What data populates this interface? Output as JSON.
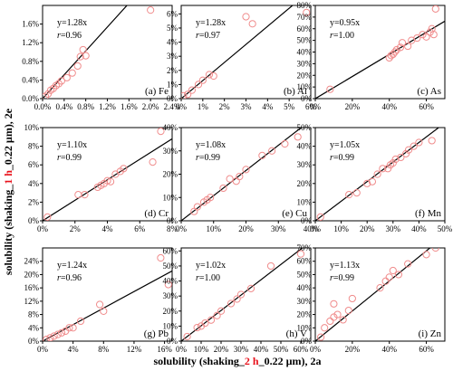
{
  "figure": {
    "ylabel_parts": [
      {
        "text": "solubility (shaking_",
        "color": "#000000"
      },
      {
        "text": "1 h",
        "color": "#e8101a"
      },
      {
        "text": "_0.22 µm), 2e",
        "color": "#000000"
      }
    ],
    "xlabel_parts": [
      {
        "text": "solubility (shaking_",
        "color": "#000000"
      },
      {
        "text": "2 h",
        "color": "#e8101a"
      },
      {
        "text": "_0.22 µm), 2a",
        "color": "#000000"
      }
    ],
    "marker_color": "#f08c8c",
    "line_color": "#000000"
  },
  "chart_data": [
    {
      "type": "scatter",
      "label": "(a) Fe",
      "eq": "y=1.28x",
      "r": "0.96",
      "xlim": [
        0,
        2.4
      ],
      "ylim": [
        0,
        2.0
      ],
      "xticks": [
        "0.0%",
        "0.4%",
        "0.8%",
        "1.2%",
        "1.6%",
        "2.0%",
        "2.4%"
      ],
      "yticks": [
        "0.0%",
        "0.4%",
        "0.8%",
        "1.2%",
        "1.6%"
      ],
      "xtick_values": [
        0,
        0.4,
        0.8,
        1.2,
        1.6,
        2.0,
        2.4
      ],
      "ytick_values": [
        0,
        0.4,
        0.8,
        1.2,
        1.6
      ],
      "slope": 1.28,
      "points": [
        [
          0.05,
          0.05
        ],
        [
          0.1,
          0.1
        ],
        [
          0.15,
          0.18
        ],
        [
          0.2,
          0.22
        ],
        [
          0.25,
          0.28
        ],
        [
          0.3,
          0.32
        ],
        [
          0.35,
          0.38
        ],
        [
          0.45,
          0.45
        ],
        [
          0.55,
          0.55
        ],
        [
          0.65,
          0.7
        ],
        [
          0.7,
          0.9
        ],
        [
          0.75,
          1.05
        ],
        [
          0.8,
          0.92
        ],
        [
          2.0,
          1.9
        ]
      ]
    },
    {
      "type": "scatter",
      "label": "(b) Al",
      "eq": "y=1.28x",
      "r": "0.97",
      "xlim": [
        0,
        6
      ],
      "ylim": [
        0,
        6.6
      ],
      "xticks": [
        "0%",
        "1%",
        "2%",
        "3%",
        "4%",
        "5%",
        "6%"
      ],
      "yticks": [
        "0%",
        "1%",
        "2%",
        "3%",
        "4%",
        "5%",
        "6%"
      ],
      "xtick_values": [
        0,
        1,
        2,
        3,
        4,
        5,
        6
      ],
      "ytick_values": [
        0,
        1,
        2,
        3,
        4,
        5,
        6
      ],
      "slope": 1.28,
      "points": [
        [
          0.1,
          0.2
        ],
        [
          0.3,
          0.3
        ],
        [
          0.5,
          0.6
        ],
        [
          0.8,
          1.0
        ],
        [
          1.0,
          1.3
        ],
        [
          1.3,
          1.7
        ],
        [
          1.5,
          1.6
        ],
        [
          3.0,
          5.8
        ],
        [
          3.3,
          5.3
        ],
        [
          5.8,
          6.1
        ]
      ]
    },
    {
      "type": "scatter",
      "label": "(c) As",
      "eq": "y=0.95x",
      "r": "1.00",
      "xlim": [
        0,
        70
      ],
      "ylim": [
        0,
        80
      ],
      "xticks": [
        "0%",
        "20%",
        "40%",
        "60%"
      ],
      "yticks": [
        "0%",
        "10%",
        "20%",
        "30%",
        "40%",
        "50%",
        "60%",
        "70%",
        "80%"
      ],
      "xtick_values": [
        0,
        20,
        40,
        60
      ],
      "ytick_values": [
        0,
        10,
        20,
        30,
        40,
        50,
        60,
        70,
        80
      ],
      "slope": 0.95,
      "points": [
        [
          8,
          8
        ],
        [
          40,
          35
        ],
        [
          41,
          37
        ],
        [
          42,
          38
        ],
        [
          43,
          40
        ],
        [
          44,
          42
        ],
        [
          46,
          44
        ],
        [
          47,
          48
        ],
        [
          50,
          45
        ],
        [
          52,
          50
        ],
        [
          55,
          52
        ],
        [
          58,
          55
        ],
        [
          60,
          53
        ],
        [
          62,
          57
        ],
        [
          63,
          60
        ],
        [
          64,
          55
        ],
        [
          65,
          77
        ]
      ]
    },
    {
      "type": "scatter",
      "label": "(d) Cr",
      "eq": "y=1.10x",
      "r": "0.99",
      "xlim": [
        0,
        8
      ],
      "ylim": [
        0,
        10
      ],
      "xticks": [
        "0%",
        "2%",
        "4%",
        "6%",
        "8%"
      ],
      "yticks": [
        "0%",
        "2%",
        "4%",
        "6%",
        "8%",
        "10%"
      ],
      "xtick_values": [
        0,
        2,
        4,
        6,
        8
      ],
      "ytick_values": [
        0,
        2,
        4,
        6,
        8,
        10
      ],
      "slope": 1.1,
      "points": [
        [
          0.3,
          0.4
        ],
        [
          2.2,
          2.8
        ],
        [
          2.6,
          2.8
        ],
        [
          3.4,
          3.6
        ],
        [
          3.6,
          3.8
        ],
        [
          3.8,
          4.0
        ],
        [
          4.0,
          4.3
        ],
        [
          4.2,
          4.2
        ],
        [
          4.5,
          5.0
        ],
        [
          4.8,
          5.3
        ],
        [
          5.0,
          5.6
        ],
        [
          6.8,
          6.3
        ],
        [
          7.3,
          9.6
        ]
      ]
    },
    {
      "type": "scatter",
      "label": "(e) Cu",
      "eq": "y=1.08x",
      "r": "0.99",
      "xlim": [
        0,
        40
      ],
      "ylim": [
        0,
        40
      ],
      "xticks": [
        "0%",
        "10%",
        "20%",
        "30%",
        "40%"
      ],
      "yticks": [
        "0%",
        "10%",
        "20%",
        "30%",
        "40%"
      ],
      "xtick_values": [
        0,
        10,
        20,
        30,
        40
      ],
      "ytick_values": [
        0,
        10,
        20,
        30,
        40
      ],
      "slope": 1.08,
      "points": [
        [
          4,
          4
        ],
        [
          5,
          6
        ],
        [
          7,
          8
        ],
        [
          8,
          9
        ],
        [
          9,
          10
        ],
        [
          13,
          14
        ],
        [
          15,
          18
        ],
        [
          17,
          17
        ],
        [
          18,
          19
        ],
        [
          20,
          22
        ],
        [
          25,
          28
        ],
        [
          28,
          30
        ],
        [
          32,
          33
        ],
        [
          36,
          36
        ]
      ]
    },
    {
      "type": "scatter",
      "label": "(f) Mn",
      "eq": "y=1.05x",
      "r": "0.99",
      "xlim": [
        0,
        50
      ],
      "ylim": [
        0,
        50
      ],
      "xticks": [
        "0%",
        "10%",
        "20%",
        "30%",
        "40%",
        "50%"
      ],
      "yticks": [
        "0%",
        "10%",
        "20%",
        "30%",
        "40%",
        "50%"
      ],
      "xtick_values": [
        0,
        10,
        20,
        30,
        40,
        50
      ],
      "ytick_values": [
        0,
        10,
        20,
        30,
        40,
        50
      ],
      "slope": 1.05,
      "points": [
        [
          2,
          2
        ],
        [
          13,
          14
        ],
        [
          16,
          15
        ],
        [
          20,
          20
        ],
        [
          22,
          21
        ],
        [
          24,
          25
        ],
        [
          26,
          28
        ],
        [
          28,
          28
        ],
        [
          29,
          30
        ],
        [
          30,
          31
        ],
        [
          31,
          33
        ],
        [
          33,
          34
        ],
        [
          35,
          36
        ],
        [
          36,
          38
        ],
        [
          38,
          40
        ],
        [
          40,
          42
        ],
        [
          45,
          43
        ],
        [
          37,
          52
        ]
      ]
    },
    {
      "type": "scatter",
      "label": "(g) Pb",
      "eq": "y=1.24x",
      "r": "0.96",
      "xlim": [
        0,
        17
      ],
      "ylim": [
        0,
        28
      ],
      "xticks": [
        "0%",
        "4%",
        "8%",
        "12%",
        "16%"
      ],
      "yticks": [
        "0%",
        "4%",
        "8%",
        "12%",
        "16%",
        "20%",
        "24%"
      ],
      "xtick_values": [
        0,
        4,
        8,
        12,
        16
      ],
      "ytick_values": [
        0,
        4,
        8,
        12,
        16,
        20,
        24
      ],
      "slope": 1.24,
      "points": [
        [
          0.5,
          0.5
        ],
        [
          1,
          1
        ],
        [
          1.5,
          1.5
        ],
        [
          2,
          2
        ],
        [
          2.5,
          2.5
        ],
        [
          3,
          3
        ],
        [
          3.5,
          4
        ],
        [
          4,
          4
        ],
        [
          5,
          6
        ],
        [
          7.5,
          11
        ],
        [
          8,
          9
        ],
        [
          15.5,
          25
        ],
        [
          16.5,
          17
        ]
      ]
    },
    {
      "type": "scatter",
      "label": "(h) V",
      "eq": "y=1.02x",
      "r": "1.00",
      "xlim": [
        0,
        65
      ],
      "ylim": [
        0,
        62
      ],
      "xticks": [
        "0%",
        "10%",
        "20%",
        "30%",
        "40%",
        "50%",
        "60%"
      ],
      "yticks": [
        "0%",
        "10%",
        "20%",
        "30%",
        "40%",
        "50%",
        "60%"
      ],
      "xtick_values": [
        0,
        10,
        20,
        30,
        40,
        50,
        60
      ],
      "ytick_values": [
        0,
        10,
        20,
        30,
        40,
        50,
        60
      ],
      "slope": 1.02,
      "points": [
        [
          3,
          3
        ],
        [
          8,
          9
        ],
        [
          10,
          10
        ],
        [
          12,
          12
        ],
        [
          15,
          14
        ],
        [
          18,
          17
        ],
        [
          20,
          20
        ],
        [
          25,
          25
        ],
        [
          28,
          28
        ],
        [
          30,
          31
        ],
        [
          35,
          35
        ],
        [
          45,
          50
        ],
        [
          60,
          58
        ]
      ]
    },
    {
      "type": "scatter",
      "label": "(i) Zn",
      "eq": "y=1.13x",
      "r": "0.99",
      "xlim": [
        0,
        70
      ],
      "ylim": [
        0,
        70
      ],
      "xticks": [
        "0%",
        "20%",
        "40%",
        "60%"
      ],
      "yticks": [
        "0%",
        "10%",
        "20%",
        "30%",
        "40%",
        "50%",
        "60%",
        "70%"
      ],
      "xtick_values": [
        0,
        20,
        40,
        60
      ],
      "ytick_values": [
        0,
        10,
        20,
        30,
        40,
        50,
        60,
        70
      ],
      "slope": 1.13,
      "points": [
        [
          3,
          3
        ],
        [
          5,
          10
        ],
        [
          8,
          15
        ],
        [
          10,
          18
        ],
        [
          12,
          20
        ],
        [
          15,
          16
        ],
        [
          18,
          23
        ],
        [
          20,
          32
        ],
        [
          35,
          40
        ],
        [
          38,
          45
        ],
        [
          40,
          48
        ],
        [
          42,
          53
        ],
        [
          45,
          50
        ],
        [
          50,
          58
        ],
        [
          60,
          65
        ],
        [
          65,
          70
        ],
        [
          10,
          28
        ]
      ]
    }
  ]
}
